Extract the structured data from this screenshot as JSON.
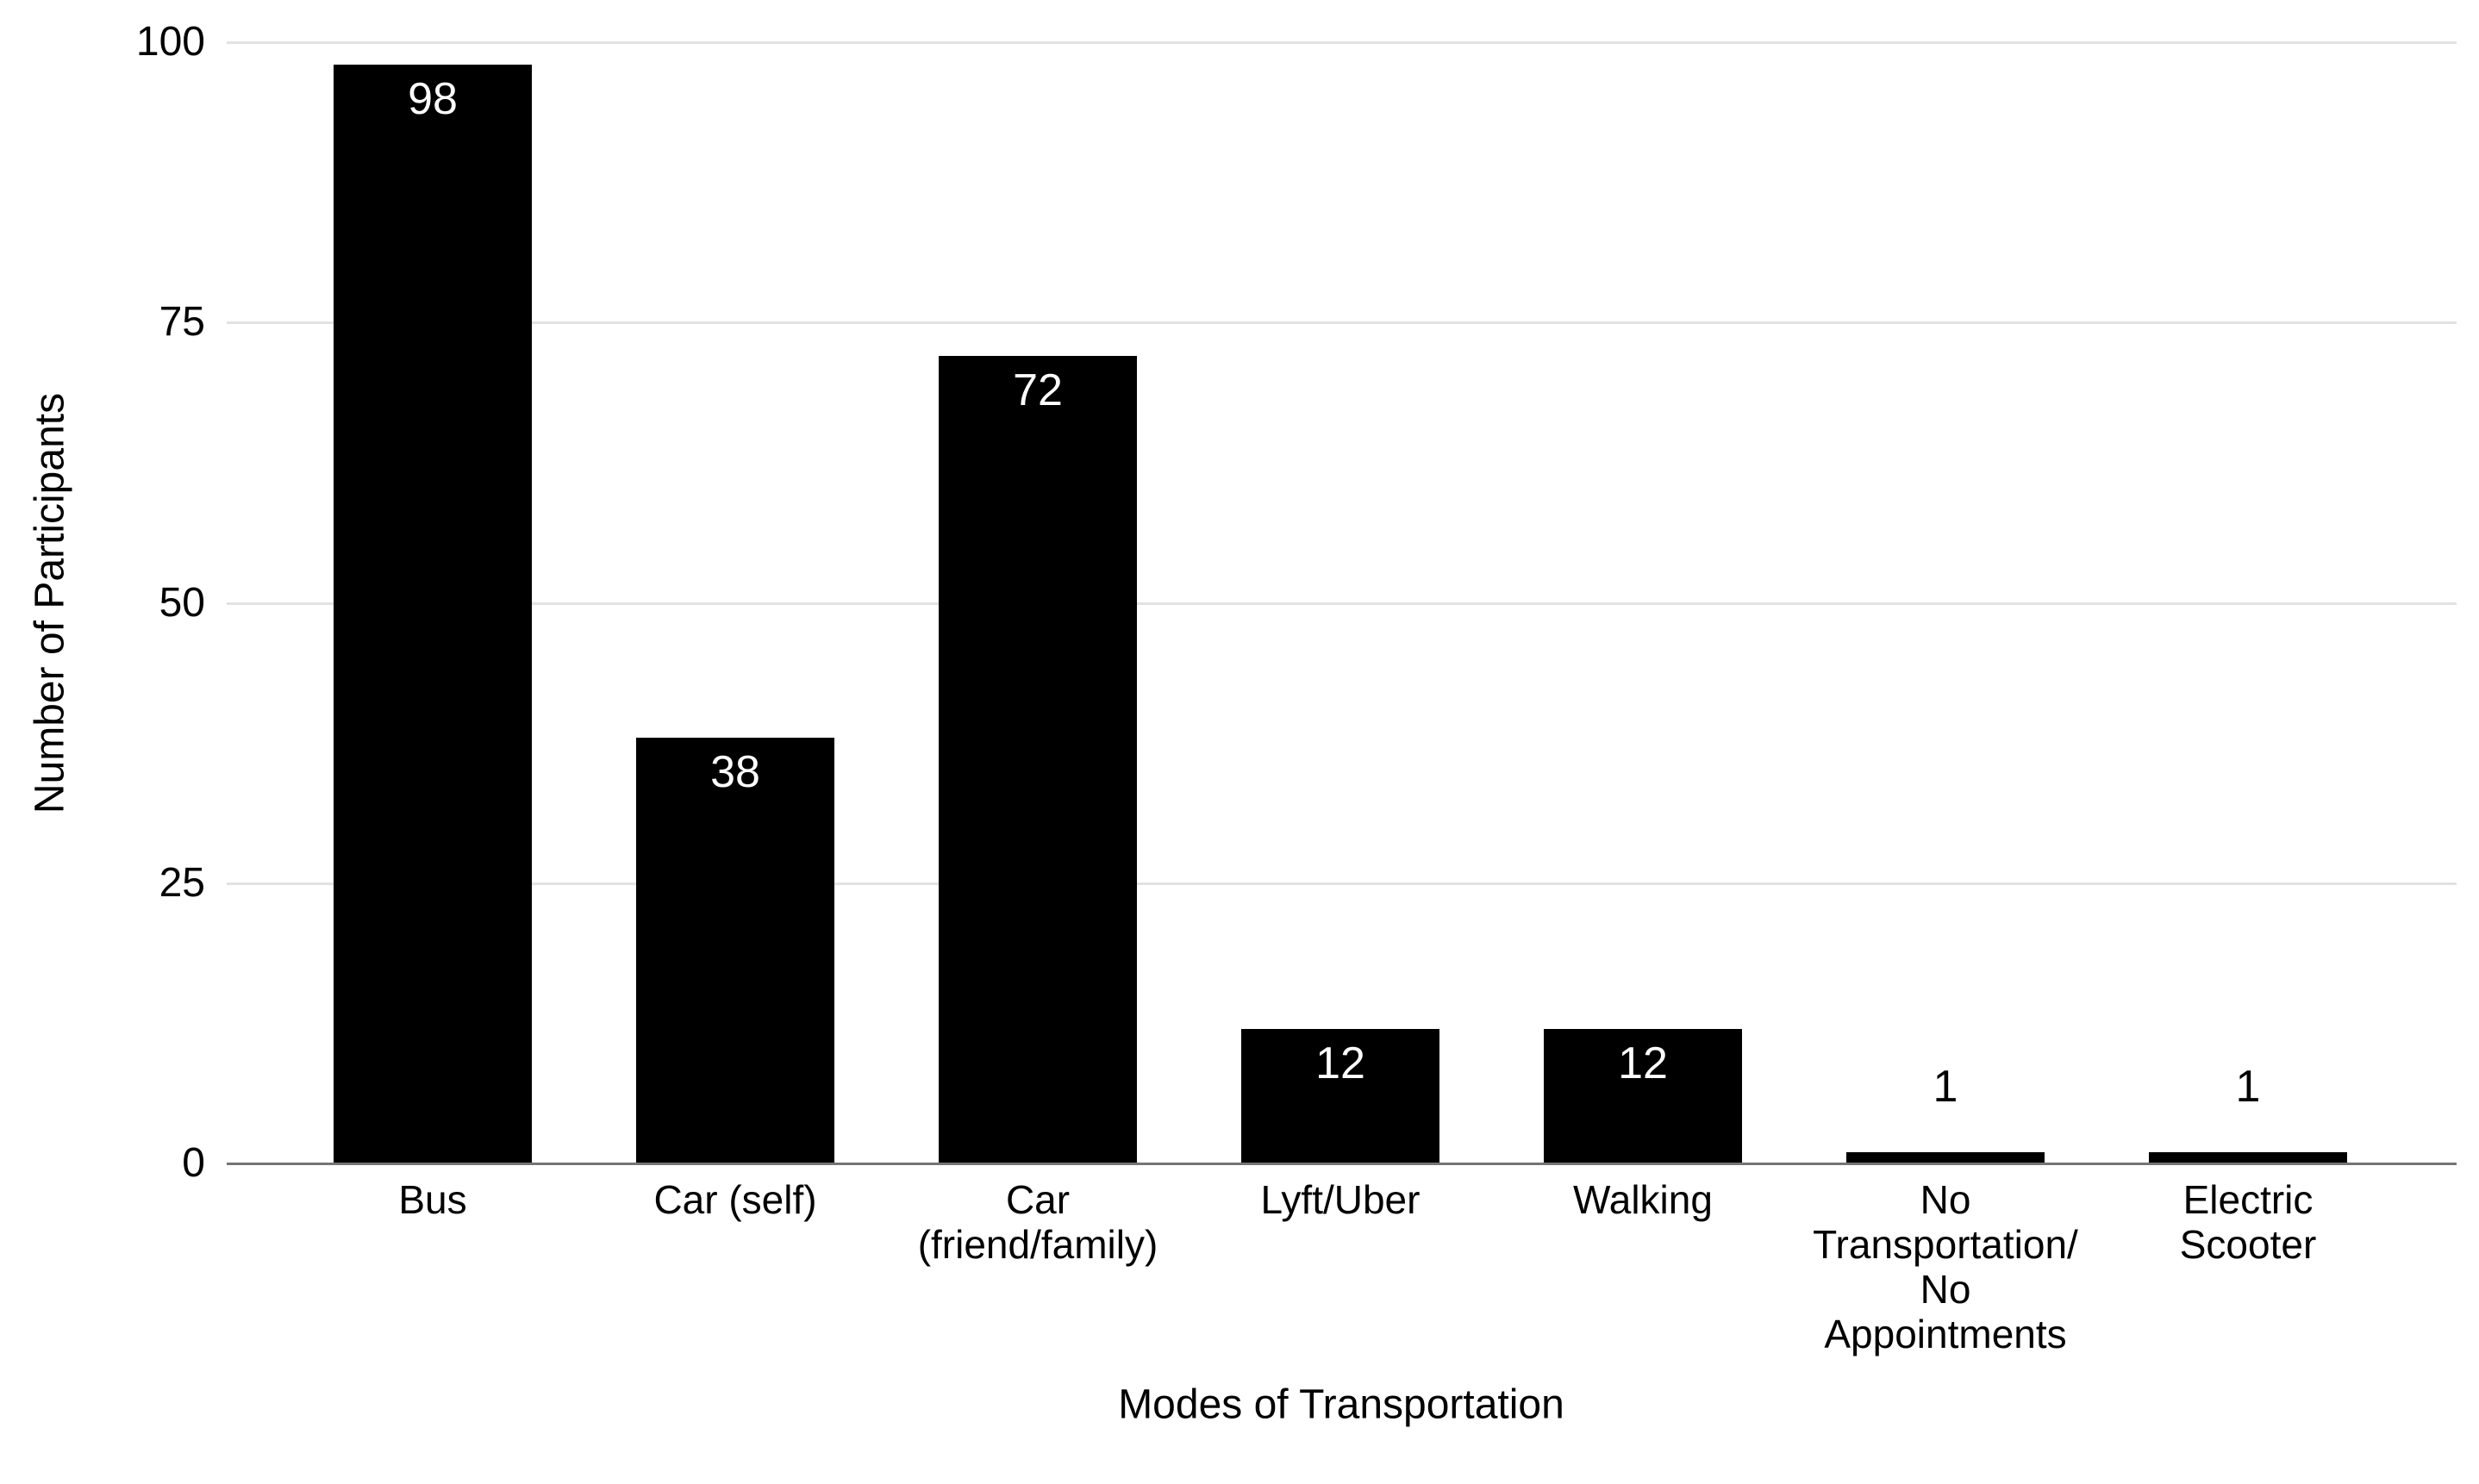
{
  "chart_data": {
    "type": "bar",
    "title": "",
    "xlabel": "Modes of Transportation",
    "ylabel": "Number of Participants",
    "categories": [
      "Bus",
      "Car (self)",
      "Car\n(friend/family)",
      "Lyft/Uber",
      "Walking",
      "No\nTransportation/\nNo\nAppointments",
      "Electric\nScooter"
    ],
    "values": [
      98,
      38,
      72,
      12,
      12,
      1,
      1
    ],
    "data_labels": [
      "98",
      "38",
      "72",
      "12",
      "12",
      "1",
      "1"
    ],
    "ylim": [
      0,
      100
    ],
    "yticks": [
      0,
      25,
      50,
      75,
      100
    ],
    "grid": "horizontal",
    "legend_position": "none",
    "colors": {
      "bar": "#000000",
      "label_inside": "#ffffff",
      "label_outside": "#000000",
      "gridline": "#e2e2e2",
      "axis_line": "#757575",
      "background": "#ffffff",
      "text": "#000000"
    }
  }
}
